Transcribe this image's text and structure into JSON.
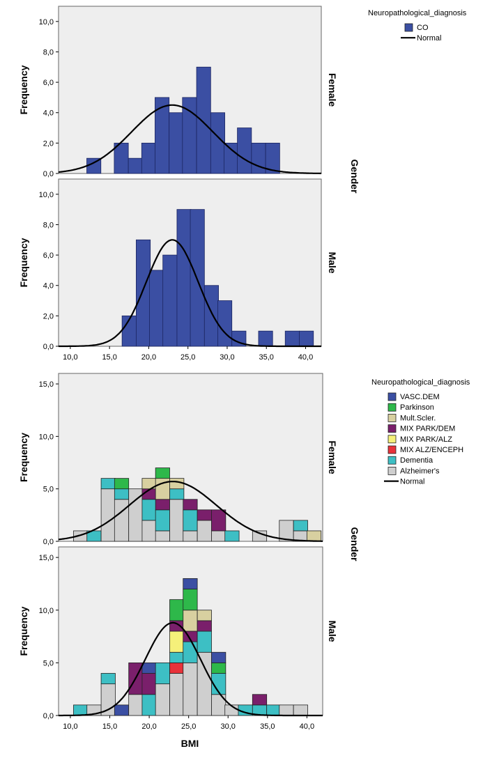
{
  "chart_data": [
    {
      "type": "bar",
      "ylabel": "Frequency",
      "panel_group_label": "Gender",
      "legend": {
        "title": "Neuropathological_diagnosis",
        "items": [
          "CO"
        ],
        "normal_label": "Normal",
        "placement": "top-right"
      },
      "colors": {
        "CO": "#3b4fa3",
        "panel_bg": "#eeeeee",
        "curve": "#000000"
      },
      "bin_width": 1.8,
      "panels": [
        {
          "label": "Female",
          "ylim": [
            0,
            11
          ],
          "yticks": [
            "0,0",
            "2,0",
            "4,0",
            "6,0",
            "8,0",
            "10,0"
          ],
          "bins": [
            {
              "x": 13.0,
              "count": 1
            },
            {
              "x": 16.5,
              "count": 2
            },
            {
              "x": 18.3,
              "count": 1
            },
            {
              "x": 20.0,
              "count": 2
            },
            {
              "x": 21.7,
              "count": 5
            },
            {
              "x": 23.5,
              "count": 4
            },
            {
              "x": 25.2,
              "count": 5
            },
            {
              "x": 27.0,
              "count": 7
            },
            {
              "x": 28.8,
              "count": 4
            },
            {
              "x": 30.5,
              "count": 2
            },
            {
              "x": 32.2,
              "count": 3
            },
            {
              "x": 34.0,
              "count": 2
            },
            {
              "x": 35.8,
              "count": 2
            }
          ],
          "normal": {
            "mean": 23.0,
            "peak": 4.5,
            "sd": 5.2
          }
        },
        {
          "label": "Male",
          "ylim": [
            0,
            11
          ],
          "yticks": [
            "0,0",
            "2,0",
            "4,0",
            "6,0",
            "8,0",
            "10,0"
          ],
          "bins": [
            {
              "x": 17.5,
              "count": 2
            },
            {
              "x": 19.3,
              "count": 7
            },
            {
              "x": 21.0,
              "count": 5
            },
            {
              "x": 22.7,
              "count": 6
            },
            {
              "x": 24.5,
              "count": 9
            },
            {
              "x": 26.2,
              "count": 9
            },
            {
              "x": 28.0,
              "count": 4
            },
            {
              "x": 29.7,
              "count": 3
            },
            {
              "x": 31.5,
              "count": 1
            },
            {
              "x": 34.9,
              "count": 1
            },
            {
              "x": 38.3,
              "count": 1
            },
            {
              "x": 40.1,
              "count": 1
            }
          ],
          "normal": {
            "mean": 23.0,
            "peak": 7.0,
            "sd": 3.3
          }
        }
      ],
      "x_ticks": [
        "10,0",
        "15,0",
        "20,0",
        "25,0",
        "30,0",
        "35,0",
        "40,0"
      ],
      "xlim": [
        8.5,
        42
      ]
    },
    {
      "type": "bar",
      "ylabel": "Frequency",
      "xlabel": "BMI",
      "panel_group_label": "Gender",
      "legend": {
        "title": "Neuropathological_diagnosis",
        "items": [
          "VASC.DEM",
          "Parkinson",
          "Mult.Scler.",
          "MIX PARK/DEM",
          "MIX PARK/ALZ",
          "MIX ALZ/ENCEPH",
          "Dementia",
          "Alzheimer's"
        ],
        "normal_label": "Normal",
        "placement": "top-right"
      },
      "colors": {
        "VASC.DEM": "#3b4fa3",
        "Parkinson": "#2eb84a",
        "Mult.Scler.": "#d8d0a0",
        "MIX PARK/DEM": "#7a1f6b",
        "MIX PARK/ALZ": "#f5f07a",
        "MIX ALZ/ENCEPH": "#e8323a",
        "Dementia": "#3dbfc4",
        "Alzheimer's": "#cfcfcf",
        "panel_bg": "#eeeeee",
        "curve": "#000000"
      },
      "bin_width": 1.8,
      "panels": [
        {
          "label": "Female",
          "ylim": [
            0,
            16
          ],
          "yticks": [
            "0,0",
            "5,0",
            "10,0",
            "15,0"
          ],
          "bins": [
            {
              "x": 11.3,
              "stack": [
                {
                  "cat": "Alzheimer's",
                  "n": 1
                }
              ]
            },
            {
              "x": 13.0,
              "stack": [
                {
                  "cat": "Dementia",
                  "n": 1
                }
              ]
            },
            {
              "x": 14.8,
              "stack": [
                {
                  "cat": "Alzheimer's",
                  "n": 5
                },
                {
                  "cat": "Dementia",
                  "n": 1
                }
              ]
            },
            {
              "x": 16.5,
              "stack": [
                {
                  "cat": "Alzheimer's",
                  "n": 4
                },
                {
                  "cat": "Dementia",
                  "n": 1
                },
                {
                  "cat": "Parkinson",
                  "n": 1
                }
              ]
            },
            {
              "x": 18.3,
              "stack": [
                {
                  "cat": "Alzheimer's",
                  "n": 5
                }
              ]
            },
            {
              "x": 20.0,
              "stack": [
                {
                  "cat": "Alzheimer's",
                  "n": 2
                },
                {
                  "cat": "Dementia",
                  "n": 2
                },
                {
                  "cat": "MIX PARK/DEM",
                  "n": 1
                },
                {
                  "cat": "Mult.Scler.",
                  "n": 1
                }
              ]
            },
            {
              "x": 21.7,
              "stack": [
                {
                  "cat": "Alzheimer's",
                  "n": 1
                },
                {
                  "cat": "Dementia",
                  "n": 2
                },
                {
                  "cat": "MIX PARK/DEM",
                  "n": 1
                },
                {
                  "cat": "Mult.Scler.",
                  "n": 2
                },
                {
                  "cat": "Parkinson",
                  "n": 1
                }
              ]
            },
            {
              "x": 23.5,
              "stack": [
                {
                  "cat": "Alzheimer's",
                  "n": 4
                },
                {
                  "cat": "Dementia",
                  "n": 1
                },
                {
                  "cat": "Mult.Scler.",
                  "n": 1
                }
              ]
            },
            {
              "x": 25.2,
              "stack": [
                {
                  "cat": "Alzheimer's",
                  "n": 1
                },
                {
                  "cat": "Dementia",
                  "n": 2
                },
                {
                  "cat": "MIX PARK/DEM",
                  "n": 1
                }
              ]
            },
            {
              "x": 27.0,
              "stack": [
                {
                  "cat": "Alzheimer's",
                  "n": 2
                },
                {
                  "cat": "MIX PARK/DEM",
                  "n": 1
                }
              ]
            },
            {
              "x": 28.8,
              "stack": [
                {
                  "cat": "Alzheimer's",
                  "n": 1
                },
                {
                  "cat": "MIX PARK/DEM",
                  "n": 2
                }
              ]
            },
            {
              "x": 30.5,
              "stack": [
                {
                  "cat": "Dementia",
                  "n": 1
                }
              ]
            },
            {
              "x": 34.0,
              "stack": [
                {
                  "cat": "Alzheimer's",
                  "n": 1
                }
              ]
            },
            {
              "x": 37.4,
              "stack": [
                {
                  "cat": "Alzheimer's",
                  "n": 2
                }
              ]
            },
            {
              "x": 39.2,
              "stack": [
                {
                  "cat": "Alzheimer's",
                  "n": 1
                },
                {
                  "cat": "Dementia",
                  "n": 1
                }
              ]
            },
            {
              "x": 40.9,
              "stack": [
                {
                  "cat": "Mult.Scler.",
                  "n": 1
                }
              ]
            }
          ],
          "normal": {
            "mean": 23.0,
            "peak": 5.7,
            "sd": 5.5
          }
        },
        {
          "label": "Male",
          "ylim": [
            0,
            16
          ],
          "yticks": [
            "0,0",
            "5,0",
            "10,0",
            "15,0"
          ],
          "bins": [
            {
              "x": 11.3,
              "stack": [
                {
                  "cat": "Dementia",
                  "n": 1
                }
              ]
            },
            {
              "x": 13.0,
              "stack": [
                {
                  "cat": "Alzheimer's",
                  "n": 1
                }
              ]
            },
            {
              "x": 14.8,
              "stack": [
                {
                  "cat": "Alzheimer's",
                  "n": 3
                },
                {
                  "cat": "Dementia",
                  "n": 1
                }
              ]
            },
            {
              "x": 16.5,
              "stack": [
                {
                  "cat": "VASC.DEM",
                  "n": 1
                }
              ]
            },
            {
              "x": 18.3,
              "stack": [
                {
                  "cat": "Alzheimer's",
                  "n": 2
                },
                {
                  "cat": "MIX PARK/DEM",
                  "n": 3
                }
              ]
            },
            {
              "x": 20.0,
              "stack": [
                {
                  "cat": "Dementia",
                  "n": 2
                },
                {
                  "cat": "MIX PARK/DEM",
                  "n": 2
                },
                {
                  "cat": "VASC.DEM",
                  "n": 1
                }
              ]
            },
            {
              "x": 21.7,
              "stack": [
                {
                  "cat": "Alzheimer's",
                  "n": 3
                },
                {
                  "cat": "Dementia",
                  "n": 2
                }
              ]
            },
            {
              "x": 23.5,
              "stack": [
                {
                  "cat": "Alzheimer's",
                  "n": 4
                },
                {
                  "cat": "MIX ALZ/ENCEPH",
                  "n": 1
                },
                {
                  "cat": "Dementia",
                  "n": 1
                },
                {
                  "cat": "MIX PARK/ALZ",
                  "n": 2
                },
                {
                  "cat": "MIX PARK/DEM",
                  "n": 1
                },
                {
                  "cat": "Parkinson",
                  "n": 2
                }
              ]
            },
            {
              "x": 25.2,
              "stack": [
                {
                  "cat": "Alzheimer's",
                  "n": 5
                },
                {
                  "cat": "Dementia",
                  "n": 2
                },
                {
                  "cat": "MIX PARK/DEM",
                  "n": 1
                },
                {
                  "cat": "Mult.Scler.",
                  "n": 2
                },
                {
                  "cat": "Parkinson",
                  "n": 2
                },
                {
                  "cat": "VASC.DEM",
                  "n": 1
                }
              ]
            },
            {
              "x": 27.0,
              "stack": [
                {
                  "cat": "Alzheimer's",
                  "n": 6
                },
                {
                  "cat": "Dementia",
                  "n": 2
                },
                {
                  "cat": "MIX PARK/DEM",
                  "n": 1
                },
                {
                  "cat": "Mult.Scler.",
                  "n": 1
                }
              ]
            },
            {
              "x": 28.8,
              "stack": [
                {
                  "cat": "Alzheimer's",
                  "n": 2
                },
                {
                  "cat": "Dementia",
                  "n": 2
                },
                {
                  "cat": "Parkinson",
                  "n": 1
                },
                {
                  "cat": "VASC.DEM",
                  "n": 1
                }
              ]
            },
            {
              "x": 30.5,
              "stack": [
                {
                  "cat": "Alzheimer's",
                  "n": 1
                }
              ]
            },
            {
              "x": 32.2,
              "stack": [
                {
                  "cat": "Dementia",
                  "n": 1
                }
              ]
            },
            {
              "x": 34.0,
              "stack": [
                {
                  "cat": "Dementia",
                  "n": 1
                },
                {
                  "cat": "MIX PARK/DEM",
                  "n": 1
                }
              ]
            },
            {
              "x": 35.8,
              "stack": [
                {
                  "cat": "Dementia",
                  "n": 1
                }
              ]
            },
            {
              "x": 37.4,
              "stack": [
                {
                  "cat": "Alzheimer's",
                  "n": 1
                }
              ]
            },
            {
              "x": 39.2,
              "stack": [
                {
                  "cat": "Alzheimer's",
                  "n": 1
                }
              ]
            }
          ],
          "normal": {
            "mean": 23.0,
            "peak": 8.8,
            "sd": 3.5
          }
        }
      ],
      "x_ticks": [
        "10,0",
        "15,0",
        "20,0",
        "25,0",
        "30,0",
        "35,0",
        "40,0"
      ],
      "xlim": [
        8.5,
        42
      ]
    }
  ]
}
